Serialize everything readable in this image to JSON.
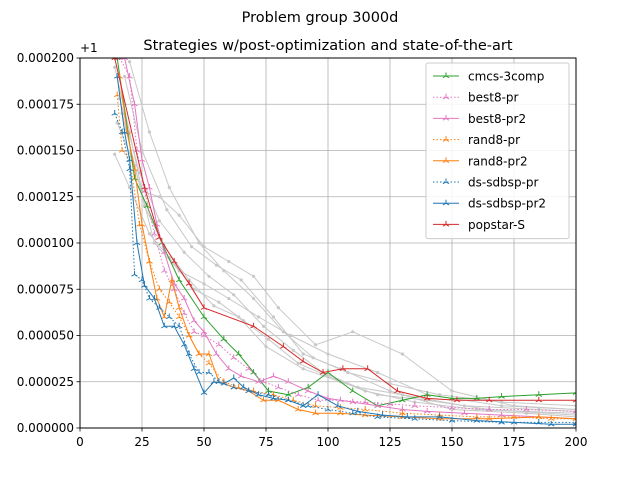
{
  "title": "Problem group 3000d",
  "chart_data": {
    "type": "line",
    "title": "Strategies w/post-optimization and state-of-the-art",
    "xlabel": "",
    "ylabel": "",
    "y_offset_label": "+1",
    "xlim": [
      0,
      200
    ],
    "ylim": [
      0,
      0.0002
    ],
    "xticks": [
      0,
      25,
      50,
      75,
      100,
      125,
      150,
      175,
      200
    ],
    "yticks": [
      "0.000000",
      "0.000025",
      "0.000050",
      "0.000075",
      "0.000100",
      "0.000125",
      "0.000150",
      "0.000175",
      "0.000200"
    ],
    "ytick_values": [
      0,
      2.5e-05,
      5e-05,
      7.5e-05,
      0.0001,
      0.000125,
      0.00015,
      0.000175,
      0.0002
    ],
    "grid": true,
    "legend_position": "top-right",
    "background_series_color": "#c8c8c8",
    "background_series": [
      [
        [
          14,
          0.000195
        ],
        [
          20,
          0.00016
        ],
        [
          25,
          0.000128
        ],
        [
          32,
          0.000125
        ],
        [
          40,
          0.000115
        ],
        [
          50,
          9.8e-05
        ],
        [
          60,
          9e-05
        ],
        [
          70,
          8.2e-05
        ],
        [
          80,
          6.5e-05
        ],
        [
          95,
          4.5e-05
        ],
        [
          110,
          5.2e-05
        ],
        [
          130,
          4e-05
        ],
        [
          150,
          2e-05
        ],
        [
          175,
          1.2e-05
        ],
        [
          200,
          1e-05
        ]
      ],
      [
        [
          15,
          0.000165
        ],
        [
          22,
          0.000142
        ],
        [
          30,
          0.0001
        ],
        [
          40,
          8.5e-05
        ],
        [
          50,
          7.8e-05
        ],
        [
          60,
          7e-05
        ],
        [
          72,
          6e-05
        ],
        [
          85,
          5e-05
        ],
        [
          100,
          4e-05
        ],
        [
          120,
          3e-05
        ],
        [
          140,
          1.8e-05
        ],
        [
          170,
          1.2e-05
        ],
        [
          200,
          1e-05
        ]
      ],
      [
        [
          18,
          0.00019
        ],
        [
          25,
          0.00015
        ],
        [
          35,
          0.000118
        ],
        [
          45,
          9.8e-05
        ],
        [
          55,
          8.8e-05
        ],
        [
          65,
          8e-05
        ],
        [
          78,
          6e-05
        ],
        [
          90,
          4e-05
        ],
        [
          105,
          3.2e-05
        ],
        [
          125,
          2e-05
        ],
        [
          150,
          1e-05
        ],
        [
          180,
          8e-06
        ],
        [
          200,
          6e-06
        ]
      ],
      [
        [
          14,
          0.000148
        ],
        [
          20,
          0.00013
        ],
        [
          28,
          0.000105
        ],
        [
          36,
          9.2e-05
        ],
        [
          46,
          7.5e-05
        ],
        [
          56,
          6.8e-05
        ],
        [
          66,
          5.8e-05
        ],
        [
          76,
          4.8e-05
        ],
        [
          88,
          3.5e-05
        ],
        [
          100,
          2.8e-05
        ],
        [
          115,
          2e-05
        ],
        [
          135,
          1.4e-05
        ],
        [
          160,
          1e-05
        ],
        [
          200,
          8e-06
        ]
      ],
      [
        [
          16,
          0.000178
        ],
        [
          24,
          0.000138
        ],
        [
          32,
          0.000112
        ],
        [
          42,
          9.5e-05
        ],
        [
          52,
          8.2e-05
        ],
        [
          62,
          7.2e-05
        ],
        [
          74,
          5.5e-05
        ],
        [
          86,
          4.2e-05
        ],
        [
          98,
          3e-05
        ],
        [
          112,
          2.2e-05
        ],
        [
          130,
          1.8e-05
        ],
        [
          155,
          1.2e-05
        ],
        [
          185,
          1e-05
        ],
        [
          200,
          9e-06
        ]
      ],
      [
        [
          20,
          0.000198
        ],
        [
          28,
          0.00016
        ],
        [
          36,
          0.00013
        ],
        [
          48,
          0.0001
        ],
        [
          58,
          8.5e-05
        ],
        [
          70,
          7e-05
        ],
        [
          82,
          5.2e-05
        ],
        [
          94,
          3.8e-05
        ],
        [
          108,
          3e-05
        ],
        [
          125,
          2.4e-05
        ],
        [
          145,
          1.8e-05
        ],
        [
          170,
          1.4e-05
        ],
        [
          200,
          1.2e-05
        ]
      ],
      [
        [
          17,
          0.00017
        ],
        [
          26,
          0.00012
        ],
        [
          34,
          9.8e-05
        ],
        [
          44,
          8e-05
        ],
        [
          54,
          6.6e-05
        ],
        [
          64,
          6e-05
        ],
        [
          75,
          4.4e-05
        ],
        [
          90,
          3.2e-05
        ],
        [
          105,
          2.5e-05
        ],
        [
          120,
          1.8e-05
        ],
        [
          140,
          1.5e-05
        ],
        [
          165,
          1e-05
        ],
        [
          200,
          7e-06
        ]
      ]
    ],
    "series": [
      {
        "name": "cmcs-3comp",
        "color": "#2ca02c",
        "dash": "solid",
        "points": [
          [
            15,
            0.0002
          ],
          [
            22,
            0.000135
          ],
          [
            27,
            0.00012
          ],
          [
            33,
            0.0001
          ],
          [
            40,
            8e-05
          ],
          [
            50,
            6e-05
          ],
          [
            58,
            4.8e-05
          ],
          [
            64,
            4e-05
          ],
          [
            70,
            3e-05
          ],
          [
            76,
            2e-05
          ],
          [
            84,
            1.8e-05
          ],
          [
            92,
            2.2e-05
          ],
          [
            100,
            3e-05
          ],
          [
            110,
            2e-05
          ],
          [
            120,
            1.2e-05
          ],
          [
            130,
            1.5e-05
          ],
          [
            140,
            1.8e-05
          ],
          [
            150,
            1.6e-05
          ],
          [
            160,
            1.6e-05
          ],
          [
            170,
            1.7e-05
          ],
          [
            185,
            1.8e-05
          ],
          [
            200,
            1.9e-05
          ]
        ]
      },
      {
        "name": "best8-pr",
        "color": "#e377c2",
        "dash": "dotted",
        "points": [
          [
            16,
            0.0002
          ],
          [
            20,
            0.00019
          ],
          [
            23,
            0.00015
          ],
          [
            26,
            0.000128
          ],
          [
            30,
            0.000105
          ],
          [
            34,
            8.5e-05
          ],
          [
            38,
            7.5e-05
          ],
          [
            42,
            6.2e-05
          ],
          [
            46,
            5.2e-05
          ],
          [
            50,
            5e-05
          ],
          [
            56,
            4.5e-05
          ],
          [
            62,
            3.8e-05
          ],
          [
            68,
            3.2e-05
          ],
          [
            74,
            2.5e-05
          ],
          [
            80,
            2.2e-05
          ],
          [
            88,
            1.8e-05
          ],
          [
            96,
            1.5e-05
          ],
          [
            105,
            1.5e-05
          ],
          [
            115,
            1.4e-05
          ],
          [
            125,
            1.3e-05
          ],
          [
            135,
            1.2e-05
          ],
          [
            150,
            1.1e-05
          ],
          [
            165,
            1e-05
          ],
          [
            180,
            1e-05
          ],
          [
            200,
            9e-06
          ]
        ]
      },
      {
        "name": "best8-pr2",
        "color": "#e377c2",
        "dash": "solid",
        "points": [
          [
            18,
            0.0002
          ],
          [
            22,
            0.000175
          ],
          [
            25,
            0.000145
          ],
          [
            28,
            0.00013
          ],
          [
            31,
            0.00011
          ],
          [
            34,
            9.5e-05
          ],
          [
            38,
            7.8e-05
          ],
          [
            42,
            7e-05
          ],
          [
            46,
            5.8e-05
          ],
          [
            50,
            5.2e-05
          ],
          [
            55,
            4e-05
          ],
          [
            60,
            3.2e-05
          ],
          [
            65,
            2.8e-05
          ],
          [
            72,
            2.5e-05
          ],
          [
            78,
            2.8e-05
          ],
          [
            84,
            2.5e-05
          ],
          [
            92,
            2e-05
          ],
          [
            100,
            1.6e-05
          ],
          [
            110,
            1.4e-05
          ],
          [
            120,
            1.2e-05
          ],
          [
            130,
            1e-05
          ],
          [
            140,
            9e-06
          ],
          [
            155,
            8e-06
          ],
          [
            170,
            7e-06
          ],
          [
            185,
            6e-06
          ],
          [
            200,
            5e-06
          ]
        ]
      },
      {
        "name": "rand8-pr",
        "color": "#ff7f0e",
        "dash": "dotted",
        "points": [
          [
            15,
            0.00018
          ],
          [
            17,
            0.00015
          ],
          [
            20,
            0.000145
          ],
          [
            24,
            0.00011
          ],
          [
            28,
            9e-05
          ],
          [
            32,
            7.5e-05
          ],
          [
            36,
            6.8e-05
          ],
          [
            40,
            6e-05
          ],
          [
            44,
            5e-05
          ],
          [
            48,
            4e-05
          ],
          [
            52,
            3.5e-05
          ],
          [
            58,
            2.5e-05
          ],
          [
            64,
            2.2e-05
          ],
          [
            70,
            2e-05
          ],
          [
            78,
            1.8e-05
          ],
          [
            86,
            1.5e-05
          ],
          [
            95,
            1.2e-05
          ],
          [
            105,
            1.1e-05
          ],
          [
            115,
            1e-05
          ],
          [
            130,
            8e-06
          ],
          [
            145,
            7e-06
          ],
          [
            160,
            6e-06
          ],
          [
            175,
            6e-06
          ],
          [
            190,
            5e-06
          ],
          [
            200,
            5e-06
          ]
        ]
      },
      {
        "name": "rand8-pr2",
        "color": "#ff7f0e",
        "dash": "solid",
        "points": [
          [
            16,
            0.00019
          ],
          [
            19,
            0.00016
          ],
          [
            22,
            0.00014
          ],
          [
            25,
            0.00011
          ],
          [
            28,
            9e-05
          ],
          [
            31,
            7e-05
          ],
          [
            34,
            6e-05
          ],
          [
            37,
            8e-05
          ],
          [
            40,
            6.5e-05
          ],
          [
            44,
            5e-05
          ],
          [
            48,
            4e-05
          ],
          [
            52,
            4e-05
          ],
          [
            56,
            2.5e-05
          ],
          [
            62,
            2.2e-05
          ],
          [
            68,
            2e-05
          ],
          [
            74,
            1.5e-05
          ],
          [
            80,
            1.5e-05
          ],
          [
            88,
            1e-05
          ],
          [
            95,
            8e-06
          ],
          [
            105,
            8e-06
          ],
          [
            115,
            7e-06
          ],
          [
            130,
            6e-06
          ],
          [
            145,
            5e-06
          ],
          [
            165,
            5e-06
          ],
          [
            185,
            6e-06
          ],
          [
            200,
            5e-06
          ]
        ]
      },
      {
        "name": "ds-sdbsp-pr",
        "color": "#1f77b4",
        "dash": "dotted",
        "points": [
          [
            14,
            0.00017
          ],
          [
            17,
            0.00016
          ],
          [
            20,
            0.00014
          ],
          [
            22,
            8.3e-05
          ],
          [
            25,
            8e-05
          ],
          [
            28,
            7e-05
          ],
          [
            32,
            6.5e-05
          ],
          [
            36,
            6e-05
          ],
          [
            40,
            5.5e-05
          ],
          [
            44,
            4e-05
          ],
          [
            48,
            3e-05
          ],
          [
            52,
            3e-05
          ],
          [
            56,
            2.5e-05
          ],
          [
            62,
            2.2e-05
          ],
          [
            68,
            2e-05
          ],
          [
            76,
            1.8e-05
          ],
          [
            84,
            1.5e-05
          ],
          [
            92,
            1.2e-05
          ],
          [
            100,
            1e-05
          ],
          [
            110,
            8e-06
          ],
          [
            120,
            6e-06
          ],
          [
            135,
            5e-06
          ],
          [
            150,
            4e-06
          ],
          [
            170,
            3e-06
          ],
          [
            185,
            3e-06
          ],
          [
            200,
            3e-06
          ]
        ]
      },
      {
        "name": "ds-sdbsp-pr2",
        "color": "#1f77b4",
        "dash": "solid",
        "points": [
          [
            15,
            0.00019
          ],
          [
            18,
            0.00016
          ],
          [
            20,
            0.000145
          ],
          [
            23,
            0.0001
          ],
          [
            26,
            7.7e-05
          ],
          [
            30,
            7e-05
          ],
          [
            34,
            5.5e-05
          ],
          [
            38,
            5.5e-05
          ],
          [
            42,
            4.5e-05
          ],
          [
            46,
            3.2e-05
          ],
          [
            50,
            1.9e-05
          ],
          [
            54,
            2.5e-05
          ],
          [
            58,
            2.4e-05
          ],
          [
            62,
            2.7e-05
          ],
          [
            66,
            2.2e-05
          ],
          [
            72,
            1.8e-05
          ],
          [
            78,
            1.6e-05
          ],
          [
            84,
            1.5e-05
          ],
          [
            90,
            1.2e-05
          ],
          [
            96,
            1.8e-05
          ],
          [
            104,
            1.2e-05
          ],
          [
            112,
            9e-06
          ],
          [
            122,
            7e-06
          ],
          [
            132,
            6e-06
          ],
          [
            145,
            6e-06
          ],
          [
            160,
            4e-06
          ],
          [
            175,
            3e-06
          ],
          [
            190,
            2e-06
          ],
          [
            200,
            2e-06
          ]
        ]
      },
      {
        "name": "popstar-S",
        "color": "#d62728",
        "dash": "solid",
        "points": [
          [
            14,
            0.0002
          ],
          [
            26,
            0.00013
          ],
          [
            32,
            0.000103
          ],
          [
            38,
            9e-05
          ],
          [
            44,
            7.8e-05
          ],
          [
            50,
            6.5e-05
          ],
          [
            70,
            5.5e-05
          ],
          [
            82,
            4.4e-05
          ],
          [
            90,
            3.6e-05
          ],
          [
            98,
            3e-05
          ],
          [
            106,
            3.2e-05
          ],
          [
            116,
            3.2e-05
          ],
          [
            128,
            2e-05
          ],
          [
            140,
            1.6e-05
          ],
          [
            152,
            1.5e-05
          ],
          [
            165,
            1.5e-05
          ],
          [
            185,
            1.5e-05
          ],
          [
            200,
            1.5e-05
          ]
        ]
      }
    ]
  }
}
